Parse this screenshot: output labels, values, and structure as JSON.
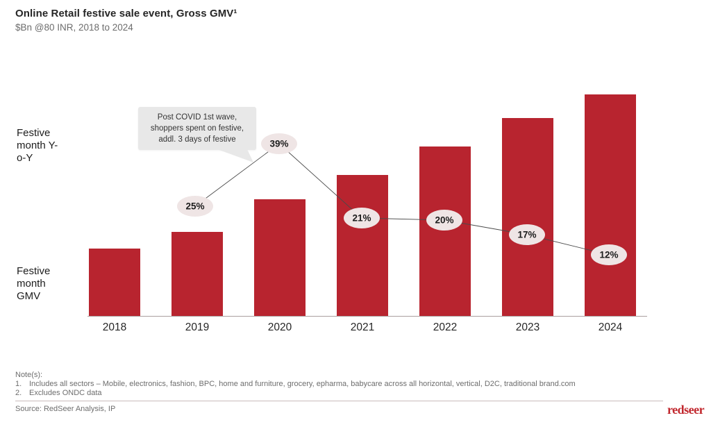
{
  "header": {
    "title": "Online Retail festive sale event, Gross GMV¹",
    "subtitle": "$Bn @80 INR, 2018 to 2024"
  },
  "chart": {
    "labels": {
      "yoy_axis": "Festive month Y-o-Y",
      "gmv_axis": "Festive month GMV"
    }
  },
  "annotation": {
    "lines": [
      "Post COVID 1st wave,",
      "shoppers spent on festive,",
      "addl. 3 days of festive"
    ]
  },
  "chart_data": {
    "type": "bar",
    "title": "Online Retail festive sale event, Gross GMV",
    "units": "$Bn @80 INR",
    "categories": [
      "2018",
      "2019",
      "2020",
      "2021",
      "2022",
      "2023",
      "2024"
    ],
    "series": [
      {
        "name": "Festive month GMV",
        "values_relative_2018eq100": [
          100,
          125,
          174,
          210,
          252,
          295,
          330
        ],
        "values_note": "bars carry no data labels; heights estimated, normalized to 2018 = 100"
      }
    ],
    "line_overlay": {
      "name": "Festive month Y-o-Y",
      "categories": [
        "2019",
        "2020",
        "2021",
        "2022",
        "2023",
        "2024"
      ],
      "values_pct": [
        25,
        39,
        21,
        20,
        17,
        12
      ],
      "label_suffix": "%"
    },
    "value_axis_labeled": false,
    "grid": false,
    "annotation": "Post COVID 1st wave, shoppers spent on festive, addl. 3 days of festive"
  },
  "colors": {
    "bar": "#b8242f",
    "bubble_fill": "#efe5e5",
    "line": "#4a4a4a",
    "accent_red": "#c1272d"
  },
  "notes": {
    "label": "Note(s):",
    "items": [
      {
        "num": "1.",
        "text": "Includes all sectors – Mobile, electronics, fashion, BPC, home and furniture, grocery, epharma, babycare across all horizontal, vertical, D2C, traditional brand.com"
      },
      {
        "num": "2.",
        "text": "Excludes ONDC data"
      }
    ]
  },
  "source": {
    "text": "Source: RedSeer Analysis, IP"
  },
  "logo": {
    "text": "redseer"
  }
}
